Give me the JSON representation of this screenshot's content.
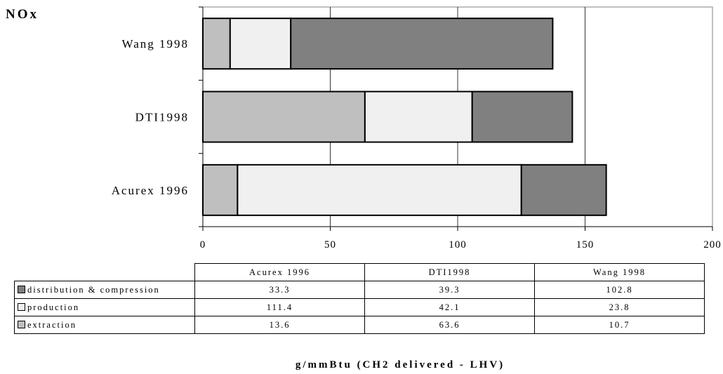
{
  "chart_data": {
    "type": "bar",
    "orientation": "horizontal",
    "stacked": true,
    "title": "NOx",
    "xlabel": "g/mmBtu (CH2 delivered - LHV)",
    "categories": [
      "Acurex 1996",
      "DTI 1998",
      "Wang 1998"
    ],
    "series": [
      {
        "name": "extraction",
        "values": [
          13.6,
          63.6,
          10.7
        ],
        "color": "#bfbfbf"
      },
      {
        "name": "production",
        "values": [
          111.4,
          42.1,
          23.8
        ],
        "color": "#f0f0f0"
      },
      {
        "name": "distribution & compression",
        "values": [
          33.3,
          39.3,
          102.8
        ],
        "color": "#808080"
      }
    ],
    "xlim": [
      0,
      200
    ],
    "xticks": [
      0,
      50,
      100,
      150,
      200
    ],
    "xtick_labels": [
      "0",
      "50",
      "100",
      "150",
      "200"
    ],
    "grid": true,
    "legend": "data-table-below"
  },
  "table": {
    "columns": [
      "Acurex 1996",
      "DTI1998",
      "Wang 1998"
    ],
    "rows": [
      {
        "label": "distribution & compression",
        "values": [
          "33.3",
          "39.3",
          "102.8"
        ],
        "color": "#808080"
      },
      {
        "label": "production",
        "values": [
          "111.4",
          "42.1",
          "23.8"
        ],
        "color": "#f0f0f0"
      },
      {
        "label": "extraction",
        "values": [
          "13.6",
          "63.6",
          "10.7"
        ],
        "color": "#bfbfbf"
      }
    ]
  },
  "bar_labels": [
    "Acurex 1996",
    "DTI1998",
    "Wang 1998"
  ]
}
